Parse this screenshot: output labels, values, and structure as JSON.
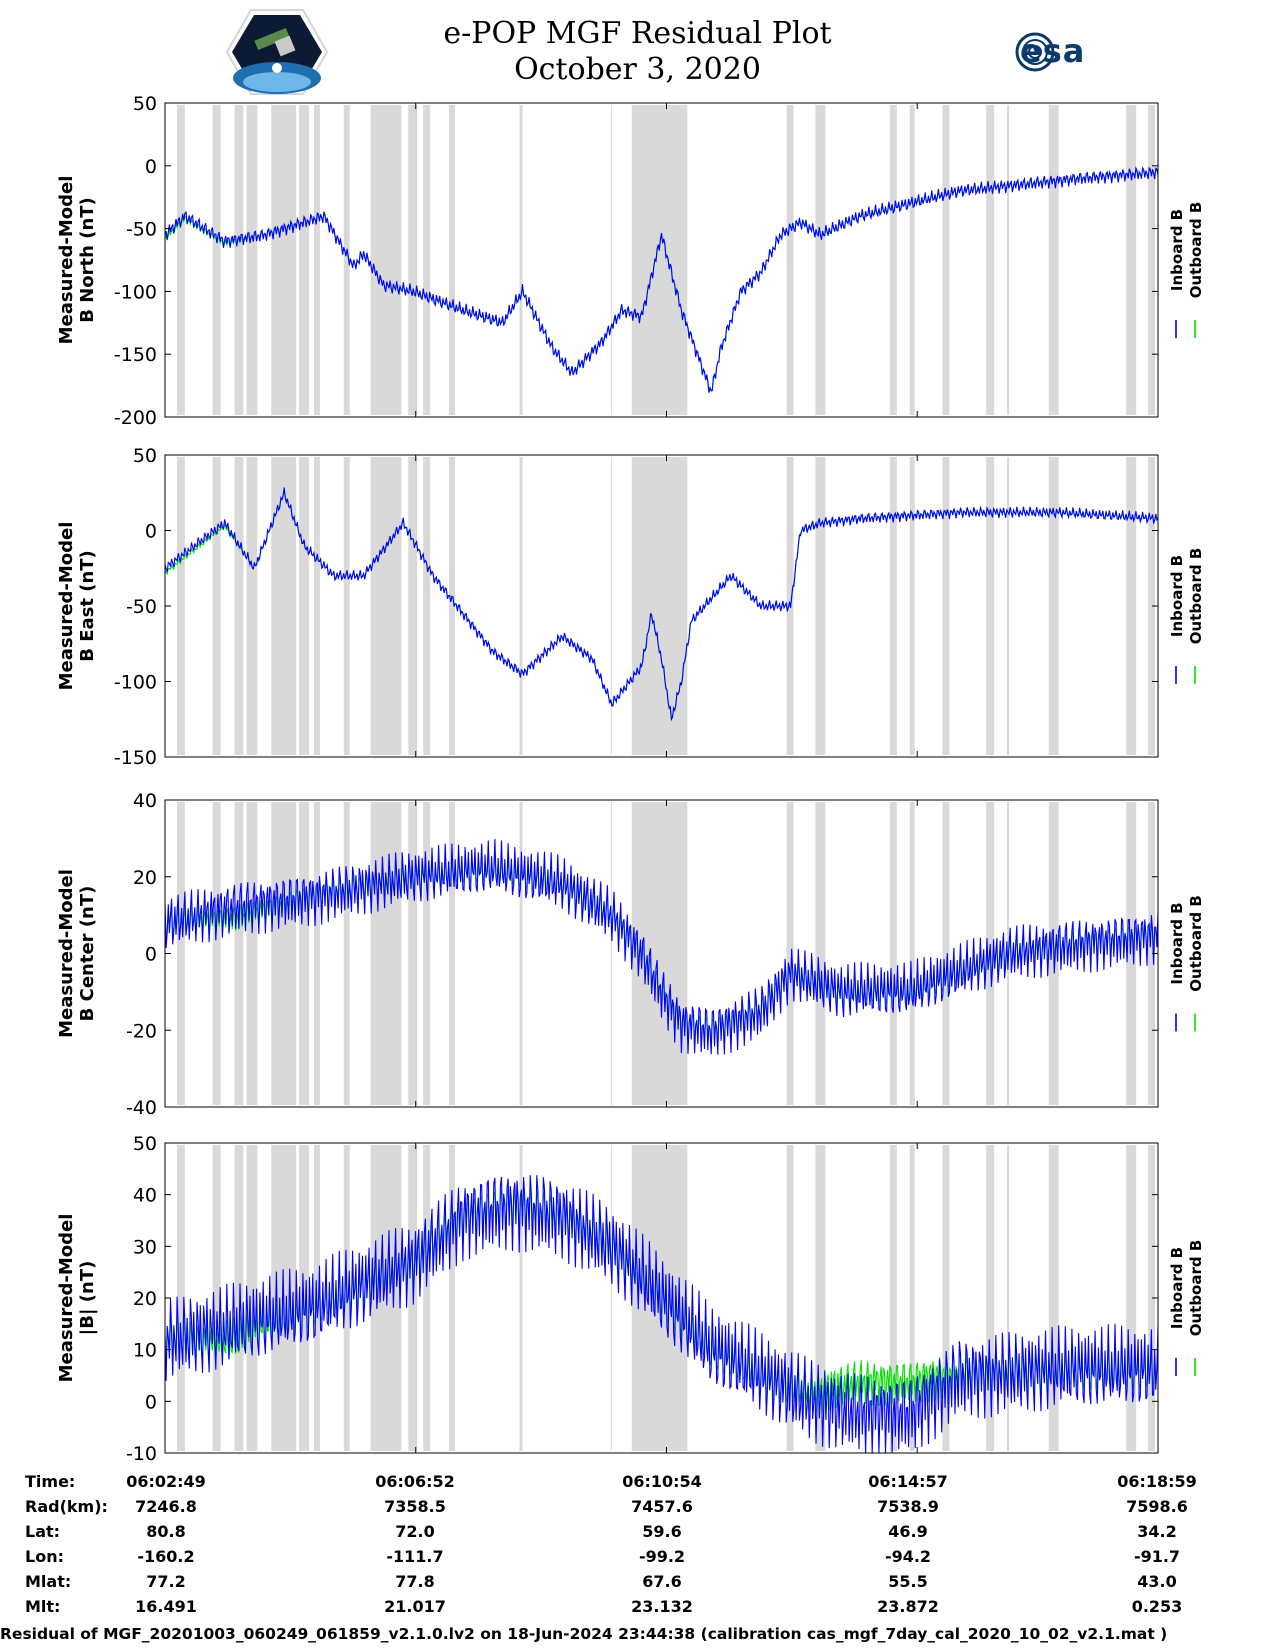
{
  "header": {
    "title_line1": "e-POP MGF Residual Plot",
    "title_line2": "October 3, 2020",
    "logo_left": "CASSIOPE mission logo",
    "logo_right_text": "esa"
  },
  "chart_data": [
    {
      "type": "line",
      "ylabel_line1": "Measured-Model",
      "ylabel_line2": "B North (nT)",
      "ylim": [
        -200,
        50
      ],
      "yticks": [
        50,
        0,
        -50,
        -100,
        -150,
        -200
      ],
      "legend": [
        "Inboard B",
        "Outboard B"
      ],
      "legend_placement": "right",
      "series": [
        {
          "name": "Inboard B",
          "color": "#0000ff",
          "x": [
            0,
            0.02,
            0.06,
            0.1,
            0.16,
            0.19,
            0.2,
            0.22,
            0.25,
            0.3,
            0.34,
            0.36,
            0.39,
            0.41,
            0.44,
            0.46,
            0.48,
            0.5,
            0.51,
            0.52,
            0.55,
            0.56,
            0.58,
            0.6,
            0.62,
            0.64,
            0.66,
            0.7,
            0.75,
            0.8,
            0.86,
            0.92,
            1.0
          ],
          "y": [
            -55,
            -40,
            -60,
            -55,
            -40,
            -80,
            -70,
            -95,
            -100,
            -115,
            -125,
            -100,
            -145,
            -165,
            -140,
            -115,
            -120,
            -55,
            -85,
            -115,
            -180,
            -145,
            -100,
            -85,
            -55,
            -45,
            -55,
            -40,
            -30,
            -20,
            -15,
            -10,
            -5
          ]
        },
        {
          "name": "Outboard B",
          "color": "#00e000",
          "x": [
            0,
            0.02,
            0.06,
            0.1,
            0.16,
            0.19,
            0.2,
            0.22,
            0.25,
            0.3,
            0.34,
            0.36,
            0.39,
            0.41,
            0.44,
            0.46,
            0.48,
            0.5,
            0.51,
            0.52,
            0.55,
            0.56,
            0.58,
            0.6,
            0.62,
            0.64,
            0.66,
            0.7,
            0.75,
            0.8,
            0.86,
            0.92,
            1.0
          ],
          "y": [
            -58,
            -42,
            -62,
            -55,
            -40,
            -80,
            -70,
            -95,
            -100,
            -115,
            -125,
            -100,
            -145,
            -165,
            -140,
            -115,
            -120,
            -55,
            -85,
            -115,
            -180,
            -145,
            -100,
            -85,
            -55,
            -45,
            -55,
            -40,
            -30,
            -20,
            -15,
            -10,
            -5
          ]
        }
      ]
    },
    {
      "type": "line",
      "ylabel_line1": "Measured-Model",
      "ylabel_line2": "B East (nT)",
      "ylim": [
        -150,
        50
      ],
      "yticks": [
        50,
        0,
        -50,
        -100,
        -150
      ],
      "legend": [
        "Inboard B",
        "Outboard B"
      ],
      "legend_placement": "right",
      "series": [
        {
          "name": "Inboard B",
          "color": "#0000ff",
          "x": [
            0,
            0.06,
            0.09,
            0.12,
            0.14,
            0.17,
            0.2,
            0.24,
            0.27,
            0.3,
            0.33,
            0.36,
            0.4,
            0.43,
            0.45,
            0.48,
            0.49,
            0.5,
            0.51,
            0.52,
            0.53,
            0.57,
            0.6,
            0.63,
            0.64,
            0.66,
            0.7,
            0.8,
            0.9,
            1.0
          ],
          "y": [
            -25,
            5,
            -25,
            25,
            -10,
            -30,
            -30,
            5,
            -30,
            -55,
            -80,
            -95,
            -70,
            -85,
            -115,
            -90,
            -55,
            -85,
            -125,
            -100,
            -60,
            -30,
            -50,
            -50,
            0,
            5,
            8,
            12,
            12,
            8
          ]
        },
        {
          "name": "Outboard B",
          "color": "#00e000",
          "x": [
            0,
            0.06,
            0.09,
            0.12,
            0.14,
            0.17,
            0.2,
            0.24,
            0.27,
            0.3,
            0.33,
            0.36,
            0.4,
            0.43,
            0.45,
            0.48,
            0.49,
            0.5,
            0.51,
            0.52,
            0.53,
            0.57,
            0.6,
            0.63,
            0.64,
            0.66,
            0.7,
            0.8,
            0.9,
            1.0
          ],
          "y": [
            -28,
            3,
            -25,
            25,
            -10,
            -30,
            -30,
            5,
            -30,
            -55,
            -80,
            -95,
            -70,
            -85,
            -115,
            -90,
            -55,
            -85,
            -125,
            -100,
            -60,
            -30,
            -50,
            -50,
            0,
            5,
            8,
            12,
            12,
            8
          ]
        }
      ]
    },
    {
      "type": "line",
      "ylabel_line1": "Measured-Model",
      "ylabel_line2": "B Center (nT)",
      "ylim": [
        -40,
        40
      ],
      "yticks": [
        40,
        20,
        0,
        -20,
        -40
      ],
      "legend": [
        "Inboard B",
        "Outboard B"
      ],
      "legend_placement": "right",
      "series": [
        {
          "name": "Inboard B",
          "color": "#0000ff",
          "x": [
            0,
            0.07,
            0.15,
            0.25,
            0.33,
            0.4,
            0.45,
            0.48,
            0.5,
            0.52,
            0.55,
            0.6,
            0.63,
            0.68,
            0.75,
            0.8,
            0.85,
            0.9,
            1.0
          ],
          "y": [
            8,
            12,
            15,
            20,
            22,
            18,
            10,
            0,
            -10,
            -18,
            -20,
            -15,
            -5,
            -10,
            -10,
            -5,
            0,
            2,
            5
          ]
        },
        {
          "name": "Outboard B",
          "color": "#00e000",
          "x": [
            0,
            0.07,
            0.15,
            0.25,
            0.33,
            0.4,
            0.45,
            0.48,
            0.5,
            0.52,
            0.55,
            0.6,
            0.63,
            0.68,
            0.75,
            0.8,
            0.85,
            0.9,
            1.0
          ],
          "y": [
            8,
            9,
            15,
            20,
            22,
            18,
            10,
            0,
            -10,
            -18,
            -20,
            -15,
            -5,
            -10,
            -10,
            -5,
            0,
            2,
            5
          ]
        }
      ]
    },
    {
      "type": "line",
      "ylabel_line1": "Measured-Model",
      "ylabel_line2": "|B| (nT)",
      "ylim": [
        -10,
        50
      ],
      "yticks": [
        50,
        40,
        30,
        20,
        10,
        0,
        -10
      ],
      "legend": [
        "Inboard B",
        "Outboard B"
      ],
      "legend_placement": "right",
      "series": [
        {
          "name": "Inboard B",
          "color": "#0000ff",
          "x": [
            0,
            0.06,
            0.15,
            0.25,
            0.3,
            0.35,
            0.4,
            0.45,
            0.5,
            0.55,
            0.6,
            0.65,
            0.7,
            0.75,
            0.8,
            0.9,
            1.0
          ],
          "y": [
            12,
            14,
            18,
            27,
            36,
            38,
            36,
            30,
            20,
            10,
            5,
            0,
            -2,
            -2,
            5,
            6,
            6
          ]
        },
        {
          "name": "Outboard B",
          "color": "#00e000",
          "x": [
            0,
            0.06,
            0.15,
            0.25,
            0.3,
            0.35,
            0.4,
            0.45,
            0.5,
            0.55,
            0.6,
            0.65,
            0.7,
            0.75,
            0.8,
            0.9,
            1.0
          ],
          "y": [
            12,
            11,
            18,
            27,
            36,
            38,
            36,
            30,
            20,
            10,
            5,
            2,
            4,
            4,
            6,
            6,
            6
          ]
        }
      ]
    }
  ],
  "data_gaps": [
    [
      0.012,
      0.02
    ],
    [
      0.048,
      0.056
    ],
    [
      0.07,
      0.079
    ],
    [
      0.082,
      0.093
    ],
    [
      0.107,
      0.132
    ],
    [
      0.135,
      0.145
    ],
    [
      0.15,
      0.156
    ],
    [
      0.18,
      0.186
    ],
    [
      0.207,
      0.238
    ],
    [
      0.245,
      0.254
    ],
    [
      0.26,
      0.267
    ],
    [
      0.286,
      0.292
    ],
    [
      0.357,
      0.36
    ],
    [
      0.449,
      0.45
    ],
    [
      0.47,
      0.526
    ],
    [
      0.626,
      0.633
    ],
    [
      0.655,
      0.665
    ],
    [
      0.73,
      0.737
    ],
    [
      0.75,
      0.755
    ],
    [
      0.783,
      0.79
    ],
    [
      0.827,
      0.835
    ],
    [
      0.848,
      0.85
    ],
    [
      0.89,
      0.9
    ],
    [
      0.968,
      0.978
    ],
    [
      0.99,
      0.997
    ]
  ],
  "info": {
    "labels": [
      "Time:",
      "Rad(km):",
      "Lat:",
      "Lon:",
      "Mlat:",
      "Mlt:"
    ],
    "columns": [
      {
        "time": "06:02:49",
        "rad": "7246.8",
        "lat": "80.8",
        "lon": "-160.2",
        "mlat": "77.2",
        "mlt": "16.491"
      },
      {
        "time": "06:06:52",
        "rad": "7358.5",
        "lat": "72.0",
        "lon": "-111.7",
        "mlat": "77.8",
        "mlt": "21.017"
      },
      {
        "time": "06:10:54",
        "rad": "7457.6",
        "lat": "59.6",
        "lon": "-99.2",
        "mlat": "67.6",
        "mlt": "23.132"
      },
      {
        "time": "06:14:57",
        "rad": "7538.9",
        "lat": "46.9",
        "lon": "-94.2",
        "mlat": "55.5",
        "mlt": "23.872"
      },
      {
        "time": "06:18:59",
        "rad": "7598.6",
        "lat": "34.2",
        "lon": "-91.7",
        "mlat": "43.0",
        "mlt": "0.253"
      }
    ]
  },
  "footer": "Residual of MGF_20201003_060249_061859_v2.1.0.lv2 on 18-Jun-2024 23:44:38 (calibration cas_mgf_7day_cal_2020_10_02_v2.1.mat )"
}
